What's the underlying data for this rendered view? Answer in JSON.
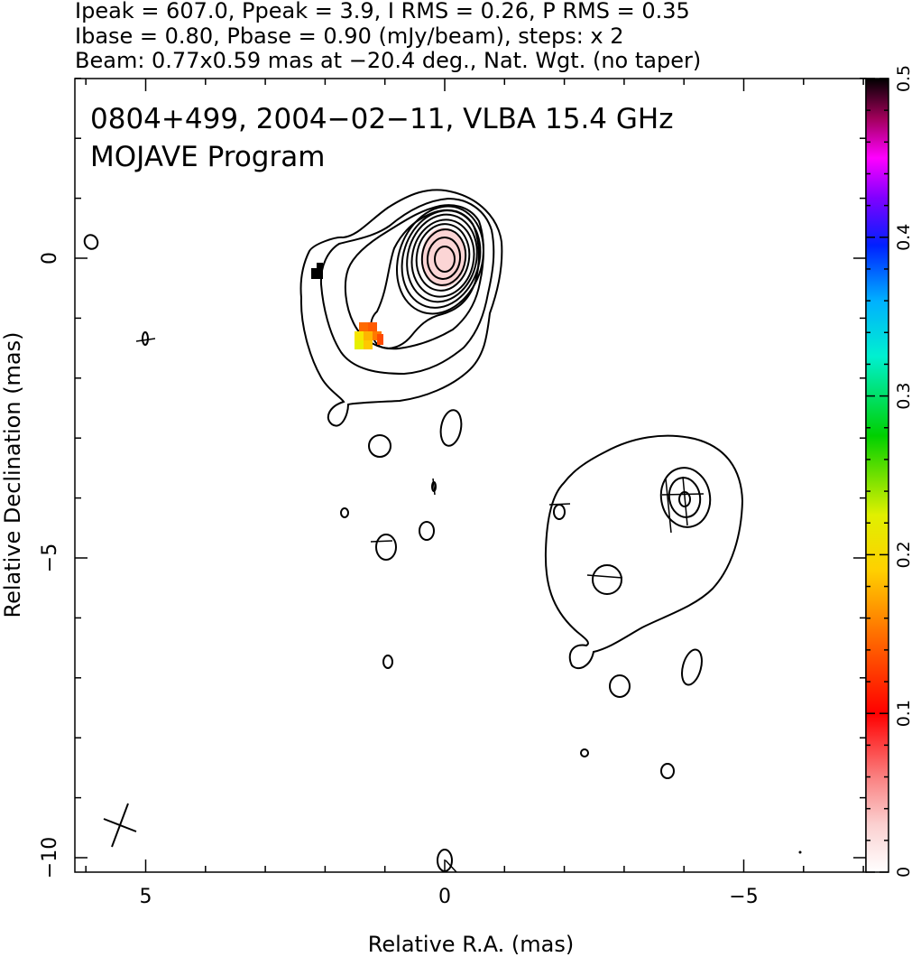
{
  "header": {
    "line1": "Ipeak = 607.0, Ppeak = 3.9, I RMS = 0.26, P RMS = 0.35",
    "line2": "Ibase = 0.80, Pbase = 0.90 (mJy/beam), steps: x 2",
    "line3": "Beam: 0.77x0.59 mas at −20.4 deg., Nat. Wgt. (no taper)"
  },
  "chart_data": {
    "type": "contour",
    "title": "0804+499, 2004−02−11, VLBA 15.4 GHz",
    "subtitle": "MOJAVE Program",
    "xlabel": "Relative R.A. (mas)",
    "ylabel": "Relative Declination (mas)",
    "xlim": [
      6.2,
      -7.2
    ],
    "ylim": [
      -10.2,
      3.0
    ],
    "x_ticks": [
      5,
      0,
      -5
    ],
    "x_tick_labels": [
      "5",
      "0",
      "−5"
    ],
    "y_ticks": [
      0,
      -5,
      -10
    ],
    "y_tick_labels": [
      "0",
      "−5",
      "−10"
    ],
    "colorbar": {
      "range": [
        0,
        0.5
      ],
      "ticks": [
        0,
        0.1,
        0.2,
        0.3,
        0.4,
        0.5
      ],
      "tick_labels": [
        "0",
        "0.1",
        "0.2",
        "0.3",
        "0.4",
        "0.5"
      ]
    },
    "beam": {
      "major_mas": 0.77,
      "minor_mas": 0.59,
      "pa_deg": -20.4
    },
    "contour_base_mJy_per_beam": 0.8,
    "contour_step_factor": 2,
    "peak_mJy_per_beam": 607.0
  }
}
